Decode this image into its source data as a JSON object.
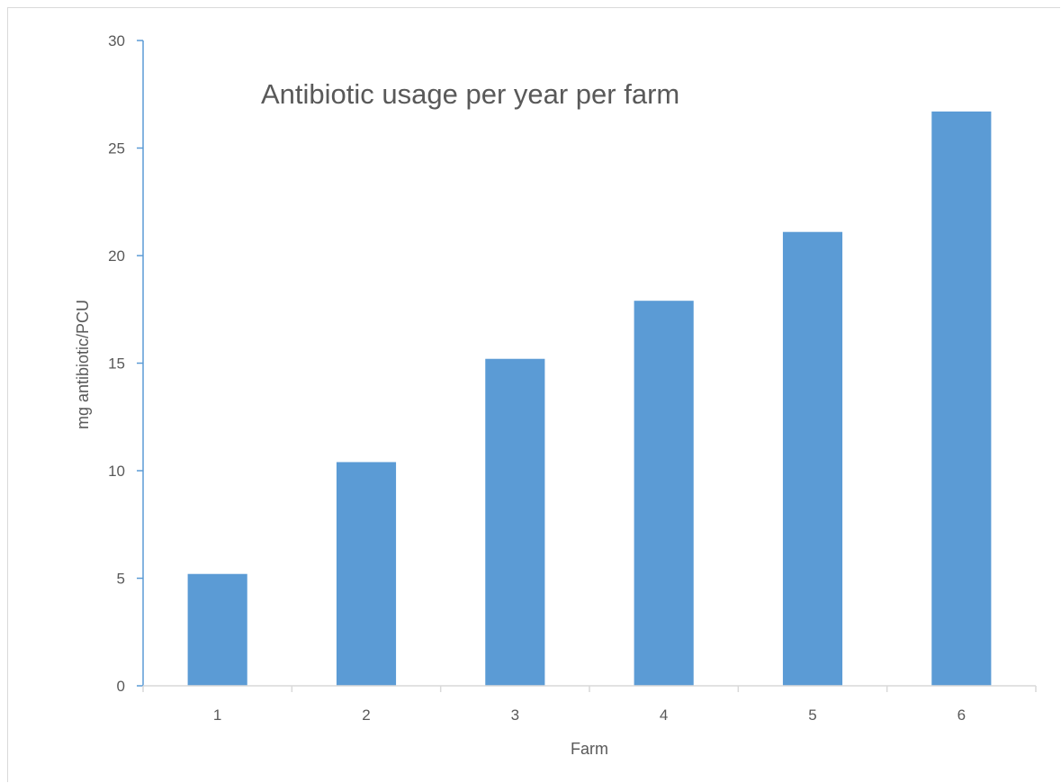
{
  "chart_data": {
    "type": "bar",
    "title": "Antibiotic usage per year per farm",
    "xlabel": "Farm",
    "ylabel": "mg antibiotic/PCU",
    "categories": [
      "1",
      "2",
      "3",
      "4",
      "5",
      "6"
    ],
    "values": [
      5.2,
      10.4,
      15.2,
      17.9,
      21.1,
      26.7
    ],
    "ylim": [
      0,
      30
    ],
    "yticks": [
      "0",
      "5",
      "10",
      "15",
      "20",
      "25",
      "30"
    ],
    "grid": false,
    "legend": "none",
    "bar_color": "#5b9bd5",
    "axis_color": "#5b9bd5"
  }
}
